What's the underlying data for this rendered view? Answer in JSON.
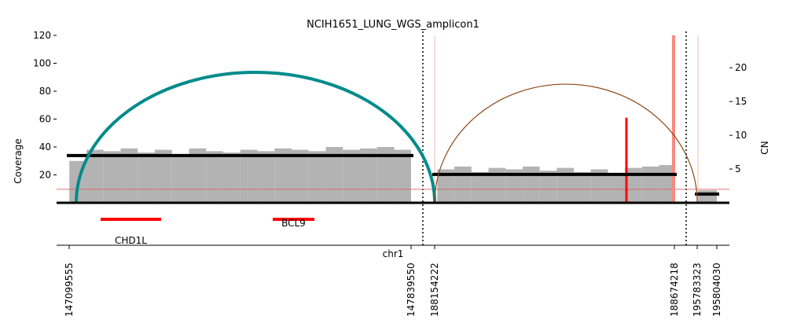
{
  "chart_data": {
    "type": "amplicon",
    "title": "NCIH1651_LUNG_WGS_amplicon1",
    "ylabel": "Coverage",
    "y2label": "CN",
    "xlabel": "chr1",
    "ylim": [
      0,
      120
    ],
    "yticks": [
      20,
      40,
      60,
      80,
      100,
      120
    ],
    "y2lim": [
      0,
      24.8
    ],
    "y2ticks": [
      5,
      10,
      15,
      20
    ],
    "xticks": [
      147099555,
      147839550,
      188154222,
      188674218,
      195783323,
      195804030
    ],
    "coverage": {
      "color": "#b3b3b3",
      "x": [
        147100000,
        147137000,
        147174000,
        147211000,
        147248000,
        147285000,
        147322000,
        147359000,
        147396000,
        147433000,
        147470000,
        147507000,
        147544000,
        147581000,
        147618000,
        147655000,
        147692000,
        147729000,
        147766000,
        147803000,
        188160000,
        188197000,
        188234000,
        188271000,
        188308000,
        188345000,
        188382000,
        188419000,
        188456000,
        188493000,
        188530000,
        188567000,
        188604000,
        188641000,
        195784000,
        195794000
      ],
      "values": [
        30,
        38,
        37,
        39,
        36,
        38,
        35,
        39,
        37,
        36,
        38,
        37,
        39,
        38,
        37,
        40,
        38,
        39,
        40,
        38,
        24,
        26,
        22,
        25,
        24,
        26,
        23,
        25,
        22,
        24,
        21,
        25,
        26,
        27,
        9,
        9
      ]
    },
    "cn_segments": [
      {
        "start": 147099555,
        "end": 147839550,
        "value": 7.0
      },
      {
        "start": 188154222,
        "end": 188674218,
        "value": 4.2
      },
      {
        "start": 195783323,
        "end": 195804030,
        "value": 1.3
      }
    ],
    "cn_baseline": {
      "value": 2,
      "color": "#e06060"
    },
    "arcs": [
      {
        "start": 147114860,
        "end": 188154300,
        "color": "#008b8b"
      },
      {
        "start": 188154300,
        "end": 195783400,
        "color": "#8b4513"
      }
    ],
    "breakpoints": [
      {
        "x": 188570200,
        "value": 61,
        "color": "#ff0000"
      },
      {
        "x": 188672500,
        "value": 120,
        "color": "#f88a80"
      },
      {
        "x": 188154222,
        "value": 120,
        "color": "#f4b8b8"
      },
      {
        "x": 195784150,
        "value": 120,
        "color": "#f4b8b8"
      }
    ],
    "genes": [
      {
        "name": "CHD1L",
        "start": 147167600,
        "end": 147298600,
        "color": "#ff0000"
      },
      {
        "name": "BCL9",
        "start": 147540100,
        "end": 147630250,
        "color": "#ff0000"
      }
    ]
  }
}
